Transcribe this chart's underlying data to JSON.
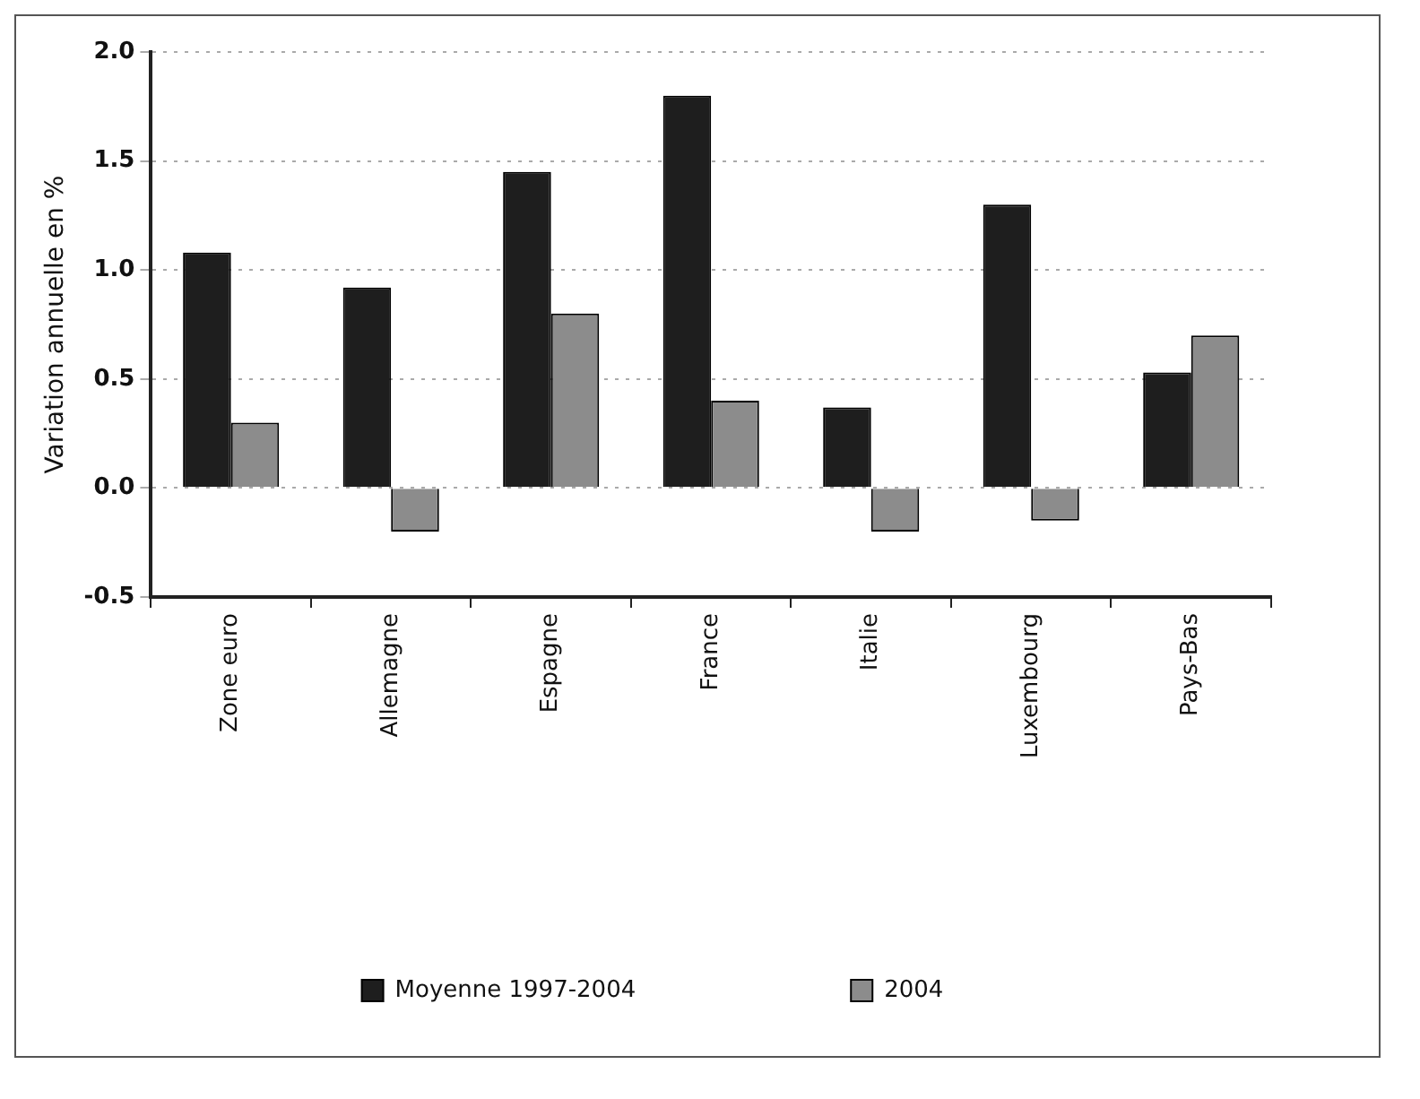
{
  "chart_data": {
    "type": "bar",
    "ylabel": "Variation annuelle en %",
    "categories": [
      "Zone euro",
      "Allemagne",
      "Espagne",
      "France",
      "Italie",
      "Luxembourg",
      "Pays-Bas"
    ],
    "series": [
      {
        "name": "Moyenne 1997-2004",
        "color": "#1e1e1e",
        "values": [
          1.08,
          0.92,
          1.45,
          1.8,
          0.37,
          1.3,
          0.53
        ]
      },
      {
        "name": "2004",
        "color": "#8c8c8c",
        "values": [
          0.3,
          -0.2,
          0.8,
          0.4,
          -0.2,
          -0.15,
          0.7
        ]
      }
    ],
    "ylim": [
      -0.5,
      2.0
    ],
    "yticks": [
      {
        "value": -0.5,
        "label": "-0.5"
      },
      {
        "value": 0,
        "label": "0.0"
      },
      {
        "value": 0.5,
        "label": "0.5"
      },
      {
        "value": 1,
        "label": "1.0"
      },
      {
        "value": 1.5,
        "label": "1.5"
      },
      {
        "value": 2,
        "label": "2.0"
      }
    ],
    "grid": "y",
    "legend": "bottom"
  }
}
